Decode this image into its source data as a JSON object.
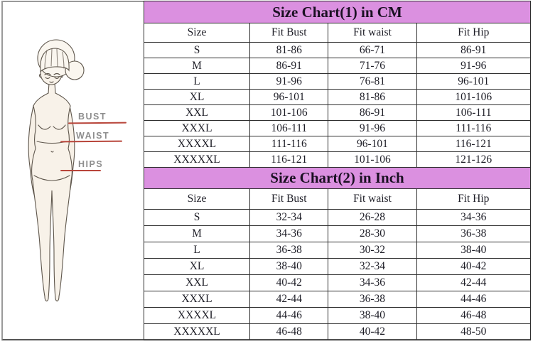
{
  "figure": {
    "labels": [
      {
        "id": "bust",
        "text": "BUST"
      },
      {
        "id": "waist",
        "text": "WAIST"
      },
      {
        "id": "hips",
        "text": "HIPS"
      }
    ]
  },
  "charts": [
    {
      "title": "Size Chart(1) in CM",
      "columns": [
        "Size",
        "Fit Bust",
        "Fit waist",
        "Fit Hip"
      ],
      "rows": [
        [
          "S",
          "81-86",
          "66-71",
          "86-91"
        ],
        [
          "M",
          "86-91",
          "71-76",
          "91-96"
        ],
        [
          "L",
          "91-96",
          "76-81",
          "96-101"
        ],
        [
          "XL",
          "96-101",
          "81-86",
          "101-106"
        ],
        [
          "XXL",
          "101-106",
          "86-91",
          "106-111"
        ],
        [
          "XXXL",
          "106-111",
          "91-96",
          "111-116"
        ],
        [
          "XXXXL",
          "111-116",
          "96-101",
          "116-121"
        ],
        [
          "XXXXXL",
          "116-121",
          "101-106",
          "121-126"
        ]
      ]
    },
    {
      "title": "Size Chart(2) in Inch",
      "columns": [
        "Size",
        "Fit Bust",
        "Fit waist",
        "Fit Hip"
      ],
      "rows": [
        [
          "S",
          "32-34",
          "26-28",
          "34-36"
        ],
        [
          "M",
          "34-36",
          "28-30",
          "36-38"
        ],
        [
          "L",
          "36-38",
          "30-32",
          "38-40"
        ],
        [
          "XL",
          "38-40",
          "32-34",
          "40-42"
        ],
        [
          "XXL",
          "40-42",
          "34-36",
          "42-44"
        ],
        [
          "XXXL",
          "42-44",
          "36-38",
          "44-46"
        ],
        [
          "XXXXL",
          "44-46",
          "38-40",
          "46-48"
        ],
        [
          "XXXXXL",
          "46-48",
          "40-42",
          "48-50"
        ]
      ]
    }
  ],
  "colors": {
    "title_bar_bg": "#db90e0",
    "table_border": "#2f2f2f",
    "title_text": "#1a1022",
    "cell_text": "#1d1d26",
    "measure_line": "#b8453a",
    "figure_label_text": "#8e8e8e",
    "frame_border": "#9a9a9a"
  }
}
